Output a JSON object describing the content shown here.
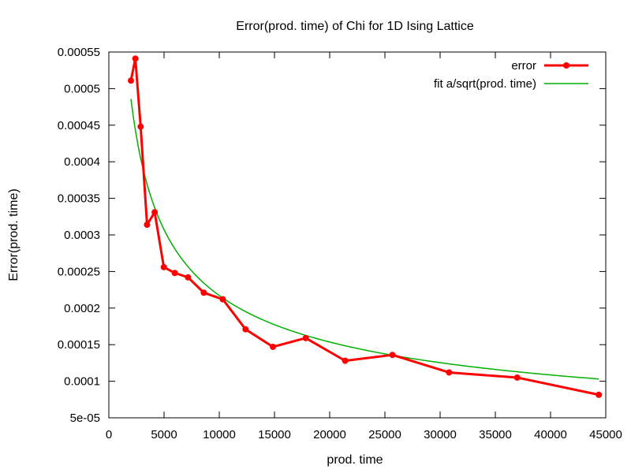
{
  "chart_data": {
    "type": "line",
    "title": "Error(prod. time) of Chi for 1D Ising Lattice",
    "xlabel": "prod. time",
    "ylabel": "Error(prod. time)",
    "xlim": [
      0,
      45000
    ],
    "ylim": [
      5e-05,
      0.00055
    ],
    "x_ticks": [
      {
        "value": 0,
        "label": "0"
      },
      {
        "value": 5000,
        "label": "5000"
      },
      {
        "value": 10000,
        "label": "10000"
      },
      {
        "value": 15000,
        "label": "15000"
      },
      {
        "value": 20000,
        "label": "20000"
      },
      {
        "value": 25000,
        "label": "25000"
      },
      {
        "value": 30000,
        "label": "30000"
      },
      {
        "value": 35000,
        "label": "35000"
      },
      {
        "value": 40000,
        "label": "40000"
      },
      {
        "value": 45000,
        "label": "45000"
      }
    ],
    "y_ticks": [
      {
        "value": 5e-05,
        "label": "5e-05"
      },
      {
        "value": 0.0001,
        "label": "0.0001"
      },
      {
        "value": 0.00015,
        "label": "0.00015"
      },
      {
        "value": 0.0002,
        "label": "0.0002"
      },
      {
        "value": 0.00025,
        "label": "0.00025"
      },
      {
        "value": 0.0003,
        "label": "0.0003"
      },
      {
        "value": 0.00035,
        "label": "0.00035"
      },
      {
        "value": 0.0004,
        "label": "0.0004"
      },
      {
        "value": 0.00045,
        "label": "0.00045"
      },
      {
        "value": 0.0005,
        "label": "0.0005"
      },
      {
        "value": 0.00055,
        "label": "0.00055"
      }
    ],
    "grid": false,
    "legend_position": "top-right",
    "series": [
      {
        "name": "error",
        "kind": "line-points",
        "color": "#ff0000",
        "x": [
          2000,
          2400,
          2880,
          3460,
          4150,
          4980,
          5970,
          7170,
          8600,
          10320,
          12380,
          14860,
          17830,
          21400,
          25680,
          30810,
          36980,
          44370
        ],
        "y": [
          0.000511,
          0.000541,
          0.000448,
          0.000314,
          0.000331,
          0.000256,
          0.000248,
          0.000242,
          0.000221,
          0.000212,
          0.000171,
          0.000147,
          0.000159,
          0.000128,
          0.000136,
          0.000112,
          0.000105,
          8.15e-05
        ]
      },
      {
        "name": "fit a/sqrt(prod. time)",
        "kind": "line",
        "color": "#00b000",
        "fit": {
          "a": 0.02172,
          "x_start": 2000,
          "x_end": 44370
        }
      }
    ]
  }
}
